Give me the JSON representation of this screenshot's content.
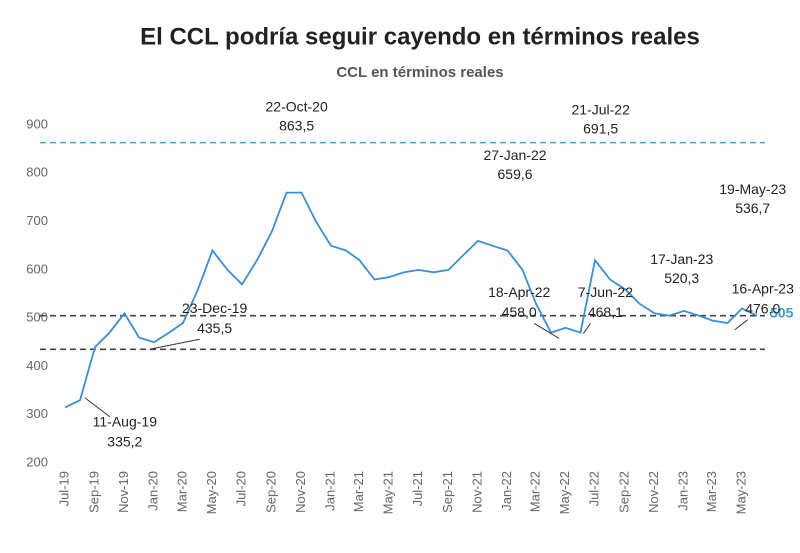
{
  "chart_data": {
    "type": "line",
    "title": "El CCL podría seguir cayendo en términos reales",
    "subtitle": "CCL en términos reales",
    "x": [
      "2019-07",
      "2019-08",
      "2019-09",
      "2019-10",
      "2019-11",
      "2019-12",
      "2020-01",
      "2020-02",
      "2020-03",
      "2020-04",
      "2020-05",
      "2020-06",
      "2020-07",
      "2020-08",
      "2020-09",
      "2020-10",
      "2020-11",
      "2020-12",
      "2021-01",
      "2021-02",
      "2021-03",
      "2021-04",
      "2021-05",
      "2021-06",
      "2021-07",
      "2021-08",
      "2021-09",
      "2021-10",
      "2021-11",
      "2021-12",
      "2022-01",
      "2022-02",
      "2022-03",
      "2022-04",
      "2022-05",
      "2022-06",
      "2022-07",
      "2022-08",
      "2022-09",
      "2022-10",
      "2022-11",
      "2022-12",
      "2023-01",
      "2023-02",
      "2023-03",
      "2023-04",
      "2023-05",
      "2023-06"
    ],
    "series": [
      {
        "name": "CCL en términos reales",
        "color": "#3a8fd9",
        "values": [
          315,
          330,
          440,
          470,
          510,
          460,
          450,
          470,
          490,
          560,
          640,
          600,
          570,
          620,
          680,
          760,
          760,
          700,
          650,
          640,
          620,
          580,
          585,
          595,
          600,
          595,
          600,
          630,
          660,
          650,
          640,
          600,
          530,
          470,
          480,
          470,
          620,
          580,
          560,
          530,
          510,
          505,
          515,
          505,
          495,
          490,
          520,
          505
        ]
      }
    ],
    "xlim": [
      "2019-07",
      "2023-06"
    ],
    "xticks": [
      {
        "value": "2019-07",
        "label": "Jul-19"
      },
      {
        "value": "2019-09",
        "label": "Sep-19"
      },
      {
        "value": "2019-11",
        "label": "Nov-19"
      },
      {
        "value": "2020-01",
        "label": "Jan-20"
      },
      {
        "value": "2020-03",
        "label": "Mar-20"
      },
      {
        "value": "2020-05",
        "label": "May-20"
      },
      {
        "value": "2020-07",
        "label": "Jul-20"
      },
      {
        "value": "2020-09",
        "label": "Sep-20"
      },
      {
        "value": "2020-11",
        "label": "Nov-20"
      },
      {
        "value": "2021-01",
        "label": "Jan-21"
      },
      {
        "value": "2021-03",
        "label": "Mar-21"
      },
      {
        "value": "2021-05",
        "label": "May-21"
      },
      {
        "value": "2021-07",
        "label": "Jul-21"
      },
      {
        "value": "2021-09",
        "label": "Sep-21"
      },
      {
        "value": "2021-11",
        "label": "Nov-21"
      },
      {
        "value": "2022-01",
        "label": "Jan-22"
      },
      {
        "value": "2022-03",
        "label": "Mar-22"
      },
      {
        "value": "2022-05",
        "label": "May-22"
      },
      {
        "value": "2022-07",
        "label": "Jul-22"
      },
      {
        "value": "2022-09",
        "label": "Sep-22"
      },
      {
        "value": "2022-11",
        "label": "Nov-22"
      },
      {
        "value": "2023-01",
        "label": "Jan-23"
      },
      {
        "value": "2023-03",
        "label": "Mar-23"
      },
      {
        "value": "2023-05",
        "label": "May-23"
      }
    ],
    "ylim": [
      200,
      900
    ],
    "yticks": [
      200,
      300,
      400,
      500,
      600,
      700,
      800,
      900
    ],
    "reference_lines": [
      {
        "value": 863.5,
        "color": "#3fa9d8"
      },
      {
        "value": 505,
        "label": "505",
        "color": "#444"
      },
      {
        "value": 435.5,
        "color": "#444"
      }
    ],
    "annotations": [
      {
        "date": "11-Aug-19",
        "value": 335.2,
        "value_label": "335,2"
      },
      {
        "date": "23-Dec-19",
        "value": 435.5,
        "value_label": "435,5"
      },
      {
        "date": "22-Oct-20",
        "value": 863.5,
        "value_label": "863,5"
      },
      {
        "date": "27-Jan-22",
        "value": 659.6,
        "value_label": "659,6"
      },
      {
        "date": "18-Apr-22",
        "value": 458.0,
        "value_label": "458,0"
      },
      {
        "date": "7-Jun-22",
        "value": 468.1,
        "value_label": "468,1"
      },
      {
        "date": "21-Jul-22",
        "value": 691.5,
        "value_label": "691,5"
      },
      {
        "date": "17-Jan-23",
        "value": 520.3,
        "value_label": "520,3"
      },
      {
        "date": "19-May-23",
        "value": 536.7,
        "value_label": "536,7"
      },
      {
        "date": "16-Apr-23",
        "value": 476.0,
        "value_label": "476,0"
      }
    ]
  }
}
